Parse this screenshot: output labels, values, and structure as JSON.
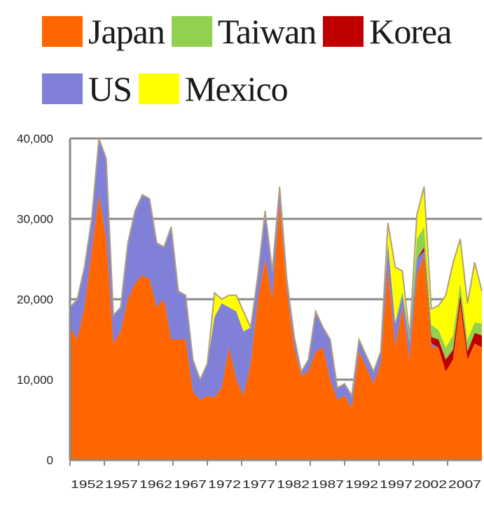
{
  "chart_data": {
    "type": "area",
    "stacked": true,
    "legend": "top",
    "grid": true,
    "ylim": [
      0,
      40000
    ],
    "y_ticks": [
      "0",
      "10,000",
      "20,000",
      "30,000",
      "40,000"
    ],
    "x_tick_labels": [
      "1952",
      "1957",
      "1962",
      "1967",
      "1972",
      "1977",
      "1982",
      "1987",
      "1992",
      "1997",
      "2002",
      "2007"
    ],
    "x": [
      1952,
      1953,
      1954,
      1955,
      1956,
      1957,
      1958,
      1959,
      1960,
      1961,
      1962,
      1963,
      1964,
      1965,
      1966,
      1967,
      1968,
      1969,
      1970,
      1971,
      1972,
      1973,
      1974,
      1975,
      1976,
      1977,
      1978,
      1979,
      1980,
      1981,
      1982,
      1983,
      1984,
      1985,
      1986,
      1987,
      1988,
      1989,
      1990,
      1991,
      1992,
      1993,
      1994,
      1995,
      1996,
      1997,
      1998,
      1999,
      2000,
      2001,
      2002,
      2003,
      2004,
      2005,
      2006,
      2007,
      2008,
      2009
    ],
    "series": [
      {
        "name": "Japan",
        "color": "#FF6600",
        "values": [
          16500,
          15000,
          19000,
          26000,
          33000,
          27500,
          14500,
          16000,
          20000,
          22000,
          23000,
          22500,
          19000,
          20000,
          15000,
          15000,
          15000,
          8500,
          7500,
          8000,
          7800,
          9000,
          14000,
          10000,
          8000,
          12000,
          20000,
          25000,
          20000,
          32000,
          21000,
          14000,
          10500,
          11000,
          13500,
          14000,
          10000,
          7500,
          8000,
          6500,
          13500,
          11500,
          9500,
          12000,
          24000,
          14000,
          19000,
          12500,
          23000,
          25500,
          14000,
          14000,
          11000,
          12500,
          19500,
          12500,
          14500,
          14000
        ]
      },
      {
        "name": "US",
        "color": "#8080D8",
        "values": [
          2500,
          5000,
          5000,
          4000,
          7000,
          10000,
          3500,
          3000,
          7000,
          9000,
          10000,
          10000,
          8000,
          6500,
          14000,
          6000,
          5500,
          4000,
          2500,
          4000,
          10000,
          10500,
          5000,
          8500,
          8000,
          4500,
          3000,
          6000,
          3500,
          2000,
          1500,
          1500,
          500,
          1500,
          5000,
          2500,
          5000,
          1500,
          1500,
          1500,
          1500,
          1500,
          1500,
          1500,
          3000,
          3000,
          1500,
          2000,
          2000,
          500,
          500,
          0,
          0,
          0,
          0,
          0,
          0,
          0
        ]
      },
      {
        "name": "Korea",
        "color": "#C00000",
        "values": [
          0,
          0,
          0,
          0,
          0,
          0,
          0,
          0,
          0,
          0,
          0,
          0,
          0,
          0,
          0,
          0,
          0,
          0,
          0,
          0,
          0,
          0,
          0,
          0,
          0,
          0,
          0,
          0,
          0,
          0,
          0,
          0,
          0,
          0,
          0,
          0,
          0,
          0,
          0,
          0,
          0,
          0,
          0,
          0,
          0,
          0,
          0,
          0,
          0,
          500,
          800,
          1000,
          1500,
          1200,
          1000,
          1000,
          1300,
          1500
        ]
      },
      {
        "name": "Taiwan",
        "color": "#92D050",
        "values": [
          0,
          0,
          0,
          0,
          0,
          0,
          0,
          0,
          0,
          0,
          0,
          0,
          0,
          0,
          0,
          0,
          0,
          0,
          0,
          0,
          0,
          0,
          0,
          0,
          0,
          0,
          0,
          0,
          0,
          0,
          0,
          0,
          0,
          0,
          0,
          0,
          0,
          0,
          0,
          0,
          0,
          0,
          0,
          0,
          0,
          0,
          500,
          800,
          2500,
          2500,
          1500,
          1200,
          1500,
          1800,
          1500,
          1500,
          1300,
          1500
        ]
      },
      {
        "name": "Mexico",
        "color": "#FFFF00",
        "values": [
          0,
          0,
          0,
          0,
          0,
          0,
          0,
          0,
          0,
          0,
          0,
          0,
          0,
          0,
          0,
          0,
          0,
          0,
          0,
          0,
          3000,
          500,
          1500,
          2000,
          2500,
          0,
          0,
          0,
          0,
          0,
          0,
          0,
          0,
          0,
          0,
          0,
          0,
          0,
          0,
          0,
          0,
          0,
          0,
          0,
          2500,
          7000,
          2500,
          0,
          3000,
          5000,
          2000,
          3000,
          6500,
          9000,
          5500,
          4500,
          7500,
          4000
        ]
      }
    ],
    "legend_order": [
      "Japan",
      "Taiwan",
      "Korea",
      "US",
      "Mexico"
    ]
  }
}
